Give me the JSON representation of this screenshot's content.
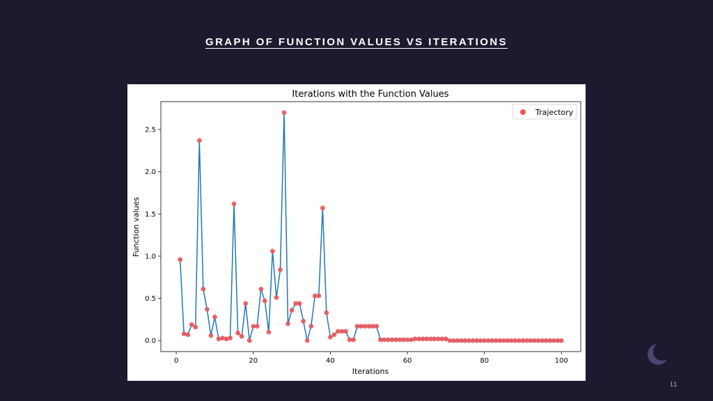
{
  "slide": {
    "title": "GRAPH OF FUNCTION VALUES VS ITERATIONS",
    "page_number": "11"
  },
  "colors": {
    "background": "#1c1a2e",
    "line": "#1f77b4",
    "marker": "#e8575c"
  },
  "chart_data": {
    "type": "line",
    "title": "Iterations with the Function Values",
    "xlabel": "Iterations",
    "ylabel": "Function values",
    "xlim": [
      -4,
      105
    ],
    "ylim": [
      -0.13,
      2.83
    ],
    "xticks": [
      0,
      20,
      40,
      60,
      80,
      100
    ],
    "yticks": [
      0.0,
      0.5,
      1.0,
      1.5,
      2.0,
      2.5
    ],
    "xtick_labels": [
      "0",
      "20",
      "40",
      "60",
      "80",
      "100"
    ],
    "ytick_labels": [
      "0.0",
      "0.5",
      "1.0",
      "1.5",
      "2.0",
      "2.5"
    ],
    "grid": false,
    "legend": {
      "placement": "top-right",
      "entries": [
        "Trajectory"
      ]
    },
    "series": [
      {
        "name": "Trajectory",
        "x": [
          1,
          2,
          3,
          4,
          5,
          6,
          7,
          8,
          9,
          10,
          11,
          12,
          13,
          14,
          15,
          16,
          17,
          18,
          19,
          20,
          21,
          22,
          23,
          24,
          25,
          26,
          27,
          28,
          29,
          30,
          31,
          32,
          33,
          34,
          35,
          36,
          37,
          38,
          39,
          40,
          41,
          42,
          43,
          44,
          45,
          46,
          47,
          48,
          49,
          50,
          51,
          52,
          53,
          54,
          55,
          56,
          57,
          58,
          59,
          60,
          61,
          62,
          63,
          64,
          65,
          66,
          67,
          68,
          69,
          70,
          71,
          72,
          73,
          74,
          75,
          76,
          77,
          78,
          79,
          80,
          81,
          82,
          83,
          84,
          85,
          86,
          87,
          88,
          89,
          90,
          91,
          92,
          93,
          94,
          95,
          96,
          97,
          98,
          99,
          100
        ],
        "y": [
          0.96,
          0.08,
          0.07,
          0.19,
          0.16,
          2.37,
          0.61,
          0.37,
          0.06,
          0.28,
          0.02,
          0.03,
          0.02,
          0.03,
          1.62,
          0.09,
          0.05,
          0.44,
          0.0,
          0.17,
          0.17,
          0.61,
          0.47,
          0.1,
          1.06,
          0.51,
          0.84,
          2.7,
          0.2,
          0.36,
          0.44,
          0.44,
          0.23,
          0.0,
          0.17,
          0.53,
          0.53,
          1.57,
          0.33,
          0.04,
          0.07,
          0.11,
          0.11,
          0.11,
          0.01,
          0.01,
          0.17,
          0.17,
          0.17,
          0.17,
          0.17,
          0.17,
          0.01,
          0.01,
          0.01,
          0.01,
          0.01,
          0.01,
          0.01,
          0.01,
          0.01,
          0.02,
          0.02,
          0.02,
          0.02,
          0.02,
          0.02,
          0.02,
          0.02,
          0.02,
          0.0,
          0.0,
          0.0,
          0.0,
          0.0,
          0.0,
          0.0,
          0.0,
          0.0,
          0.0,
          0.0,
          0.0,
          0.0,
          0.0,
          0.0,
          0.0,
          0.0,
          0.0,
          0.0,
          0.0,
          0.0,
          0.0,
          0.0,
          0.0,
          0.0,
          0.0,
          0.0,
          0.0,
          0.0,
          0.0
        ]
      }
    ]
  }
}
